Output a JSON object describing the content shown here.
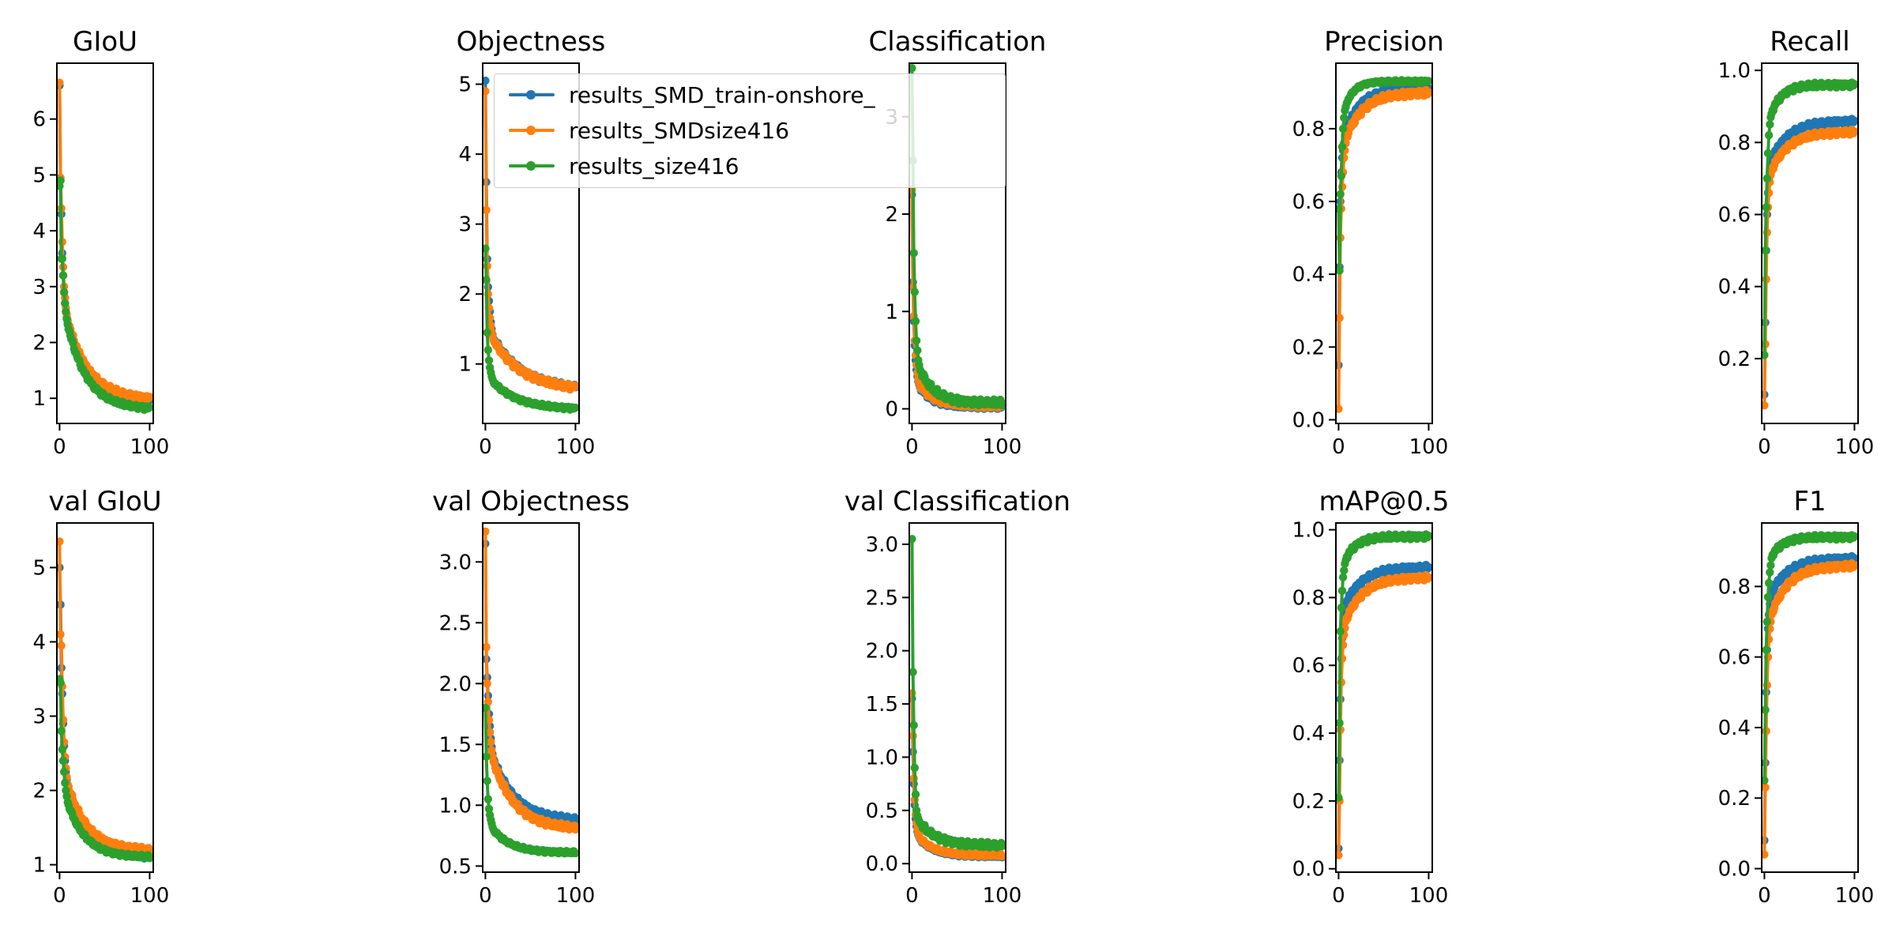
{
  "chart_data": [
    {
      "type": "line",
      "title": "GIoU",
      "xlim": [
        -3,
        104
      ],
      "ylim": [
        0.55,
        7.0
      ],
      "xticks": [
        0,
        100
      ],
      "yticks": [
        1,
        2,
        3,
        4,
        5,
        6
      ],
      "series": [
        {
          "name": "results_SMD_train-onshore_",
          "y_start": 6.6,
          "y_end": 0.93,
          "decay": 0.045,
          "early": [
            6.6,
            4.9,
            4.3,
            3.6,
            3.2,
            2.9,
            2.7,
            2.55,
            2.45,
            2.35
          ]
        },
        {
          "name": "results_SMDsize416",
          "y_start": 6.65,
          "y_end": 0.97,
          "decay": 0.042,
          "early": [
            6.65,
            4.95,
            4.4,
            3.8,
            3.35,
            3.0,
            2.8,
            2.62,
            2.5,
            2.4
          ]
        },
        {
          "name": "results_size416",
          "y_start": 4.8,
          "y_end": 0.8,
          "decay": 0.045,
          "early": [
            4.8,
            4.9,
            3.5,
            3.5,
            3.2,
            2.9,
            2.7,
            2.55,
            2.42,
            2.32
          ]
        }
      ]
    },
    {
      "type": "line",
      "title": "Objectness",
      "xlim": [
        -3,
        104
      ],
      "ylim": [
        0.15,
        5.3
      ],
      "xticks": [
        0,
        100
      ],
      "yticks": [
        1,
        2,
        3,
        4,
        5
      ],
      "series": [
        {
          "name": "results_SMD_train-onshore_",
          "y_start": 5.05,
          "y_end": 0.62,
          "decay": 0.03,
          "early": [
            5.05,
            3.6,
            2.5,
            2.1,
            1.9,
            1.75,
            1.6,
            1.5,
            1.42,
            1.36
          ]
        },
        {
          "name": "results_SMDsize416",
          "y_start": 4.9,
          "y_end": 0.62,
          "decay": 0.03,
          "early": [
            4.9,
            3.2,
            2.4,
            2.0,
            1.8,
            1.66,
            1.55,
            1.46,
            1.4,
            1.34
          ]
        },
        {
          "name": "results_size416",
          "y_start": 2.65,
          "y_end": 0.35,
          "decay": 0.035,
          "early": [
            2.65,
            2.2,
            1.45,
            1.2,
            1.05,
            0.95,
            0.88,
            0.82,
            0.78,
            0.74
          ]
        }
      ]
    },
    {
      "type": "line",
      "title": "Classification",
      "xlim": [
        -3,
        104
      ],
      "ylim": [
        -0.15,
        3.55
      ],
      "xticks": [
        0,
        100
      ],
      "yticks": [
        0,
        1,
        2,
        3
      ],
      "series": [
        {
          "name": "results_SMD_train-onshore_",
          "y_start": 2.2,
          "y_end": 0.02,
          "decay": 0.07,
          "early": [
            2.2,
            1.3,
            0.9,
            0.65,
            0.5,
            0.4,
            0.33,
            0.28,
            0.25,
            0.22
          ]
        },
        {
          "name": "results_SMDsize416",
          "y_start": 2.25,
          "y_end": 0.03,
          "decay": 0.065,
          "early": [
            2.25,
            1.25,
            0.95,
            0.7,
            0.55,
            0.45,
            0.37,
            0.31,
            0.27,
            0.24
          ]
        },
        {
          "name": "results_size416",
          "y_start": 3.5,
          "y_end": 0.06,
          "decay": 0.06,
          "early": [
            3.5,
            2.55,
            1.6,
            1.2,
            0.9,
            0.7,
            0.6,
            0.5,
            0.45,
            0.4
          ]
        }
      ]
    },
    {
      "type": "line",
      "title": "Precision",
      "xlim": [
        -3,
        104
      ],
      "ylim": [
        -0.01,
        0.98
      ],
      "xticks": [
        0,
        100
      ],
      "yticks": [
        0.0,
        0.2,
        0.4,
        0.6,
        0.8
      ],
      "series": [
        {
          "name": "results_SMD_train-onshore_",
          "y_start": 0.15,
          "y_end": 0.91,
          "decay": 0.06,
          "early": [
            0.15,
            0.42,
            0.6,
            0.68,
            0.72,
            0.74,
            0.76,
            0.78,
            0.8,
            0.8
          ]
        },
        {
          "name": "results_SMDsize416",
          "y_start": 0.03,
          "y_end": 0.9,
          "decay": 0.05,
          "early": [
            0.03,
            0.28,
            0.5,
            0.58,
            0.64,
            0.68,
            0.72,
            0.74,
            0.76,
            0.78
          ]
        },
        {
          "name": "results_size416",
          "y_start": 0.58,
          "y_end": 0.93,
          "decay": 0.1,
          "early": [
            0.58,
            0.41,
            0.62,
            0.67,
            0.75,
            0.8,
            0.83,
            0.85,
            0.86,
            0.87
          ]
        }
      ]
    },
    {
      "type": "line",
      "title": "Recall",
      "xlim": [
        -3,
        104
      ],
      "ylim": [
        0.02,
        1.02
      ],
      "xticks": [
        0,
        100
      ],
      "yticks": [
        0.2,
        0.4,
        0.6,
        0.8,
        1.0
      ],
      "series": [
        {
          "name": "results_SMD_train-onshore_",
          "y_start": 0.1,
          "y_end": 0.86,
          "decay": 0.05,
          "early": [
            0.1,
            0.3,
            0.5,
            0.6,
            0.66,
            0.7,
            0.72,
            0.74,
            0.75,
            0.76
          ]
        },
        {
          "name": "results_SMDsize416",
          "y_start": 0.07,
          "y_end": 0.83,
          "decay": 0.05,
          "early": [
            0.07,
            0.24,
            0.42,
            0.55,
            0.62,
            0.66,
            0.69,
            0.71,
            0.72,
            0.73
          ]
        },
        {
          "name": "results_size416",
          "y_start": 0.21,
          "y_end": 0.96,
          "decay": 0.08,
          "early": [
            0.21,
            0.5,
            0.62,
            0.7,
            0.77,
            0.82,
            0.85,
            0.87,
            0.88,
            0.89
          ]
        }
      ]
    },
    {
      "type": "line",
      "title": "val GIoU",
      "xlim": [
        -3,
        104
      ],
      "ylim": [
        0.9,
        5.6
      ],
      "xticks": [
        0,
        100
      ],
      "yticks": [
        1,
        2,
        3,
        4,
        5
      ],
      "series": [
        {
          "name": "results_SMD_train-onshore_",
          "y_start": 5.0,
          "y_end": 1.1,
          "decay": 0.045,
          "early": [
            5.0,
            4.5,
            3.65,
            3.3,
            2.9,
            2.6,
            2.4,
            2.25,
            2.15,
            2.05
          ]
        },
        {
          "name": "results_SMDsize416",
          "y_start": 5.35,
          "y_end": 1.18,
          "decay": 0.045,
          "early": [
            5.35,
            4.1,
            3.95,
            3.4,
            2.95,
            2.65,
            2.45,
            2.3,
            2.18,
            2.08
          ]
        },
        {
          "name": "results_size416",
          "y_start": 3.5,
          "y_end": 1.1,
          "decay": 0.05,
          "early": [
            3.5,
            3.45,
            2.8,
            2.55,
            2.4,
            2.25,
            2.1,
            2.0,
            1.92,
            1.84
          ]
        }
      ]
    },
    {
      "type": "line",
      "title": "val Objectness",
      "xlim": [
        -3,
        104
      ],
      "ylim": [
        0.45,
        3.32
      ],
      "xticks": [
        0,
        100
      ],
      "yticks": [
        0.5,
        1.0,
        1.5,
        2.0,
        2.5,
        3.0
      ],
      "series": [
        {
          "name": "results_SMD_train-onshore_",
          "y_start": 3.15,
          "y_end": 0.87,
          "decay": 0.04,
          "early": [
            3.15,
            2.2,
            2.05,
            1.9,
            1.75,
            1.65,
            1.55,
            1.48,
            1.42,
            1.38
          ]
        },
        {
          "name": "results_SMDsize416",
          "y_start": 3.25,
          "y_end": 0.8,
          "decay": 0.04,
          "early": [
            3.25,
            2.3,
            2.0,
            1.85,
            1.7,
            1.6,
            1.52,
            1.45,
            1.4,
            1.36
          ]
        },
        {
          "name": "results_size416",
          "y_start": 1.8,
          "y_end": 0.61,
          "decay": 0.05,
          "early": [
            1.8,
            1.4,
            1.2,
            1.05,
            0.97,
            0.92,
            0.88,
            0.85,
            0.82,
            0.8
          ]
        }
      ]
    },
    {
      "type": "line",
      "title": "val Classification",
      "xlim": [
        -3,
        104
      ],
      "ylim": [
        -0.08,
        3.2
      ],
      "xticks": [
        0,
        100
      ],
      "yticks": [
        0.0,
        0.5,
        1.0,
        1.5,
        2.0,
        2.5,
        3.0
      ],
      "series": [
        {
          "name": "results_SMD_train-onshore_",
          "y_start": 1.55,
          "y_end": 0.07,
          "decay": 0.06,
          "early": [
            1.55,
            1.05,
            0.75,
            0.55,
            0.42,
            0.35,
            0.3,
            0.27,
            0.25,
            0.23
          ]
        },
        {
          "name": "results_SMDsize416",
          "y_start": 1.6,
          "y_end": 0.08,
          "decay": 0.06,
          "early": [
            1.6,
            1.2,
            0.8,
            0.6,
            0.46,
            0.38,
            0.33,
            0.29,
            0.26,
            0.24
          ]
        },
        {
          "name": "results_size416",
          "y_start": 3.05,
          "y_end": 0.17,
          "decay": 0.05,
          "early": [
            3.05,
            1.8,
            1.3,
            0.9,
            0.65,
            0.5,
            0.45,
            0.42,
            0.4,
            0.38
          ]
        }
      ]
    },
    {
      "type": "line",
      "title": "mAP@0.5",
      "xlim": [
        -3,
        104
      ],
      "ylim": [
        -0.01,
        1.02
      ],
      "xticks": [
        0,
        100
      ],
      "yticks": [
        0.0,
        0.2,
        0.4,
        0.6,
        0.8,
        1.0
      ],
      "series": [
        {
          "name": "results_SMD_train-onshore_",
          "y_start": 0.06,
          "y_end": 0.89,
          "decay": 0.05,
          "early": [
            0.06,
            0.32,
            0.5,
            0.62,
            0.68,
            0.72,
            0.75,
            0.77,
            0.78,
            0.79
          ]
        },
        {
          "name": "results_SMDsize416",
          "y_start": 0.04,
          "y_end": 0.86,
          "decay": 0.05,
          "early": [
            0.04,
            0.2,
            0.41,
            0.55,
            0.62,
            0.66,
            0.69,
            0.71,
            0.73,
            0.74
          ]
        },
        {
          "name": "results_size416",
          "y_start": 0.21,
          "y_end": 0.98,
          "decay": 0.08,
          "early": [
            0.21,
            0.43,
            0.7,
            0.77,
            0.82,
            0.86,
            0.88,
            0.9,
            0.91,
            0.92
          ]
        }
      ]
    },
    {
      "type": "line",
      "title": "F1",
      "xlim": [
        -3,
        104
      ],
      "ylim": [
        -0.01,
        0.98
      ],
      "xticks": [
        0,
        100
      ],
      "yticks": [
        0.0,
        0.2,
        0.4,
        0.6,
        0.8
      ],
      "series": [
        {
          "name": "results_SMD_train-onshore_",
          "y_start": 0.08,
          "y_end": 0.88,
          "decay": 0.05,
          "early": [
            0.08,
            0.3,
            0.5,
            0.62,
            0.68,
            0.72,
            0.75,
            0.77,
            0.78,
            0.79
          ]
        },
        {
          "name": "results_SMDsize416",
          "y_start": 0.04,
          "y_end": 0.86,
          "decay": 0.05,
          "early": [
            0.04,
            0.23,
            0.39,
            0.52,
            0.6,
            0.65,
            0.68,
            0.7,
            0.72,
            0.73
          ]
        },
        {
          "name": "results_size416",
          "y_start": 0.25,
          "y_end": 0.94,
          "decay": 0.08,
          "early": [
            0.25,
            0.45,
            0.62,
            0.7,
            0.77,
            0.81,
            0.84,
            0.86,
            0.88,
            0.89
          ]
        }
      ]
    }
  ],
  "legend": {
    "entries": [
      {
        "label": "results_SMD_train-onshore_",
        "color": "#1f77b4"
      },
      {
        "label": "results_SMDsize416",
        "color": "#ff7f0e"
      },
      {
        "label": "results_size416",
        "color": "#2ca02c"
      }
    ]
  },
  "colors": {
    "series": [
      "#1f77b4",
      "#ff7f0e",
      "#2ca02c"
    ]
  }
}
